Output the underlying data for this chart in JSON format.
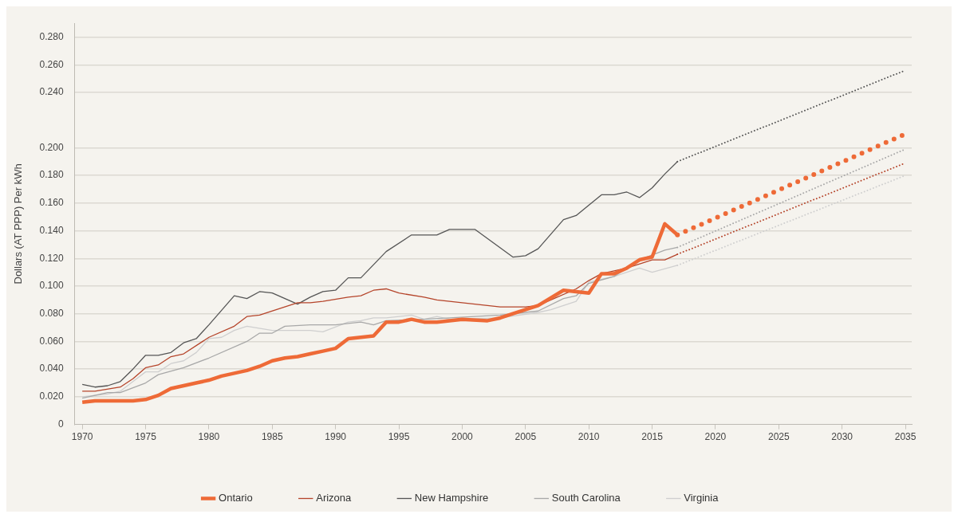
{
  "chart_data": {
    "type": "line",
    "ylabel": "Dollars (AT PPP) Per kWh",
    "xlim": [
      1969.4,
      2035.5
    ],
    "xticks": [
      1970,
      1975,
      1980,
      1985,
      1990,
      1995,
      2000,
      2005,
      2010,
      2015,
      2020,
      2025,
      2030,
      2035
    ],
    "ylim": [
      0,
      0.29
    ],
    "yticks": [
      0,
      {
        "value": 0.02,
        "label": "0.020"
      },
      {
        "value": 0.04,
        "label": "0.040"
      },
      {
        "value": 0.06,
        "label": "0.060"
      },
      {
        "value": 0.08,
        "label": "0.080"
      },
      {
        "value": 0.1,
        "label": "0.100"
      },
      {
        "value": 0.12,
        "label": "0.120"
      },
      {
        "value": 0.14,
        "label": "0.140"
      },
      {
        "value": 0.16,
        "label": "0.160"
      },
      {
        "value": 0.18,
        "label": "0.180"
      },
      {
        "value": 0.2,
        "label": "0.200"
      },
      {
        "value": 0.24,
        "label": "0.240"
      },
      {
        "value": 0.26,
        "label": "0.260"
      },
      {
        "value": 0.28,
        "label": "0.280"
      }
    ],
    "grid": "y",
    "legend": "bottom",
    "line_style": "solid",
    "marker": "none",
    "series": [
      {
        "name": "Ontario",
        "color": "#ee6a37",
        "x": [
          1970,
          1971,
          1974,
          1975,
          1976,
          1977,
          1978,
          1979,
          1980,
          1981,
          1982,
          1983,
          1984,
          1985,
          1986,
          1987,
          1988,
          1989,
          1990,
          1991,
          1992,
          1993,
          1994,
          1995,
          1996,
          1997,
          1998,
          2000,
          2002,
          2003,
          2004,
          2006,
          2008,
          2010,
          2011,
          2012,
          2013,
          2014,
          2015,
          2016,
          2017
        ],
        "values": [
          0.016,
          0.017,
          0.017,
          0.018,
          0.021,
          0.026,
          0.028,
          0.03,
          0.032,
          0.035,
          0.037,
          0.039,
          0.042,
          0.046,
          0.048,
          0.049,
          0.051,
          0.053,
          0.055,
          0.062,
          0.063,
          0.064,
          0.074,
          0.074,
          0.076,
          0.074,
          0.074,
          0.076,
          0.075,
          0.077,
          0.08,
          0.086,
          0.097,
          0.095,
          0.109,
          0.109,
          0.113,
          0.119,
          0.121,
          0.145,
          0.137
        ]
      },
      {
        "name": "Arizona",
        "color": "#b5442a",
        "x": [
          1970,
          1971,
          1973,
          1974,
          1975,
          1976,
          1977,
          1978,
          1980,
          1982,
          1983,
          1984,
          1987,
          1988,
          1989,
          1991,
          1992,
          1993,
          1994,
          1995,
          1997,
          1998,
          2001,
          2003,
          2005,
          2006,
          2007,
          2009,
          2010,
          2011,
          2013,
          2015,
          2016,
          2017
        ],
        "values": [
          0.024,
          0.024,
          0.027,
          0.033,
          0.041,
          0.043,
          0.049,
          0.051,
          0.063,
          0.071,
          0.078,
          0.079,
          0.088,
          0.088,
          0.089,
          0.092,
          0.093,
          0.097,
          0.098,
          0.095,
          0.092,
          0.09,
          0.087,
          0.085,
          0.085,
          0.086,
          0.09,
          0.098,
          0.104,
          0.109,
          0.113,
          0.119,
          0.119,
          0.123
        ]
      },
      {
        "name": "New Hampshire",
        "color": "#555555",
        "x": [
          1970,
          1971,
          1972,
          1973,
          1974,
          1975,
          1976,
          1977,
          1978,
          1979,
          1980,
          1982,
          1983,
          1984,
          1985,
          1987,
          1988,
          1989,
          1990,
          1991,
          1992,
          1994,
          1996,
          1998,
          1999,
          2001,
          2004,
          2005,
          2006,
          2008,
          2009,
          2011,
          2012,
          2013,
          2014,
          2015,
          2016,
          2017
        ],
        "values": [
          0.029,
          0.027,
          0.028,
          0.031,
          0.04,
          0.05,
          0.05,
          0.052,
          0.059,
          0.062,
          0.072,
          0.093,
          0.091,
          0.096,
          0.095,
          0.087,
          0.092,
          0.096,
          0.097,
          0.106,
          0.106,
          0.125,
          0.137,
          0.137,
          0.141,
          0.141,
          0.121,
          0.122,
          0.127,
          0.148,
          0.151,
          0.166,
          0.166,
          0.168,
          0.164,
          0.171,
          0.181,
          0.19
        ]
      },
      {
        "name": "South Carolina",
        "color": "#a8a8a8",
        "x": [
          1970,
          1972,
          1973,
          1975,
          1976,
          1978,
          1980,
          1983,
          1984,
          1985,
          1986,
          1988,
          1990,
          1992,
          1993,
          1994,
          1997,
          2003,
          2006,
          2008,
          2009,
          2010,
          2012,
          2014,
          2016,
          2017
        ],
        "values": [
          0.019,
          0.023,
          0.023,
          0.03,
          0.036,
          0.041,
          0.048,
          0.06,
          0.066,
          0.066,
          0.071,
          0.072,
          0.072,
          0.074,
          0.072,
          0.075,
          0.076,
          0.079,
          0.082,
          0.091,
          0.093,
          0.102,
          0.107,
          0.119,
          0.126,
          0.128
        ]
      },
      {
        "name": "Virginia",
        "color": "#cfcfcf",
        "x": [
          1970,
          1972,
          1973,
          1974,
          1975,
          1976,
          1977,
          1978,
          1979,
          1980,
          1981,
          1982,
          1983,
          1985,
          1988,
          1989,
          1991,
          1992,
          1993,
          1994,
          1996,
          1997,
          1998,
          1999,
          2003,
          2006,
          2007,
          2009,
          2010,
          2012,
          2014,
          2015,
          2017
        ],
        "values": [
          0.02,
          0.022,
          0.024,
          0.031,
          0.038,
          0.038,
          0.044,
          0.046,
          0.052,
          0.062,
          0.063,
          0.068,
          0.071,
          0.068,
          0.068,
          0.067,
          0.074,
          0.075,
          0.077,
          0.077,
          0.079,
          0.076,
          0.078,
          0.076,
          0.077,
          0.081,
          0.083,
          0.089,
          0.103,
          0.107,
          0.113,
          0.11,
          0.115
        ]
      },
      {
        "color": "#555555",
        "line_style": "dotted",
        "x": [
          2017,
          2035
        ],
        "values": [
          0.19,
          0.256
        ]
      },
      {
        "color": "#ee6a37",
        "line_style": "dotted",
        "x": [
          2017,
          2035
        ],
        "values": [
          0.137,
          0.21
        ]
      },
      {
        "color": "#a8a8a8",
        "line_style": "dotted",
        "x": [
          2017,
          2035
        ],
        "values": [
          0.128,
          0.199
        ]
      },
      {
        "color": "#b5442a",
        "line_style": "dotted",
        "x": [
          2017,
          2035
        ],
        "values": [
          0.123,
          0.189
        ]
      },
      {
        "color": "#cfcfcf",
        "line_style": "dotted",
        "x": [
          2017,
          2035
        ],
        "values": [
          0.115,
          0.18
        ]
      }
    ]
  }
}
